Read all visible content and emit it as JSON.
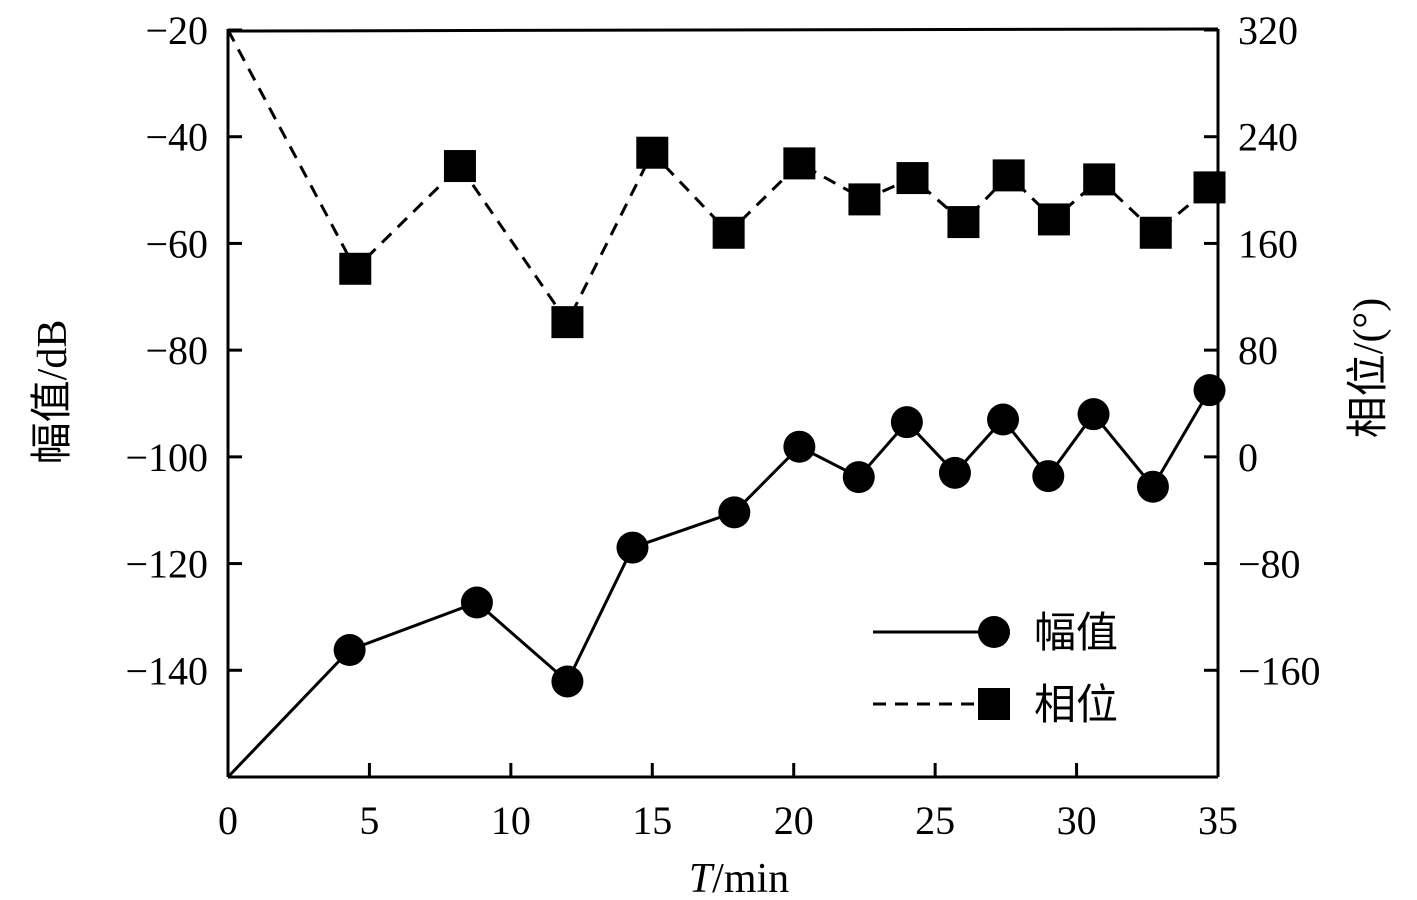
{
  "chart_data": {
    "type": "line",
    "xlabel": "T",
    "xlabel_unit": "/min",
    "ylabel_left": "幅值/dB",
    "ylabel_right": "相位/(°)",
    "xlim": [
      0,
      35
    ],
    "ylim_left": [
      -160,
      -20
    ],
    "ylim_right": [
      -240,
      320
    ],
    "x_ticks": [
      "0",
      "5",
      "10",
      "15",
      "20",
      "25",
      "30",
      "35"
    ],
    "y_left_ticks": [
      "−20",
      "−40",
      "−60",
      "−80",
      "−100",
      "−120",
      "−140"
    ],
    "y_right_ticks": [
      "320",
      "240",
      "160",
      "80",
      "0",
      "−80",
      "−160"
    ],
    "grid": false,
    "legend_position": "bottom-right",
    "series": [
      {
        "name": "幅值",
        "axis": "left",
        "line_style": "solid",
        "marker": "circle",
        "x": [
          0,
          4.3,
          8.8,
          12.0,
          14.3,
          17.9,
          20.2,
          22.3,
          24.0,
          25.7,
          27.4,
          29.0,
          30.6,
          32.7,
          34.7
        ],
        "y": [
          -160,
          -136.2,
          -127.3,
          -142.1,
          -117.0,
          -110.4,
          -98.1,
          -103.8,
          -93.5,
          -103.0,
          -93.0,
          -103.6,
          -92.0,
          -105.6,
          -87.5
        ]
      },
      {
        "name": "相位",
        "axis": "right",
        "line_style": "dashed",
        "marker": "square",
        "x": [
          0,
          4.5,
          8.2,
          12.0,
          15.0,
          17.7,
          20.2,
          22.5,
          24.2,
          26.0,
          27.6,
          29.2,
          30.8,
          32.8,
          34.7
        ],
        "y": [
          320,
          141,
          218,
          101,
          228,
          168,
          220,
          193,
          209,
          176,
          211,
          178,
          208,
          168,
          202
        ]
      }
    ]
  }
}
